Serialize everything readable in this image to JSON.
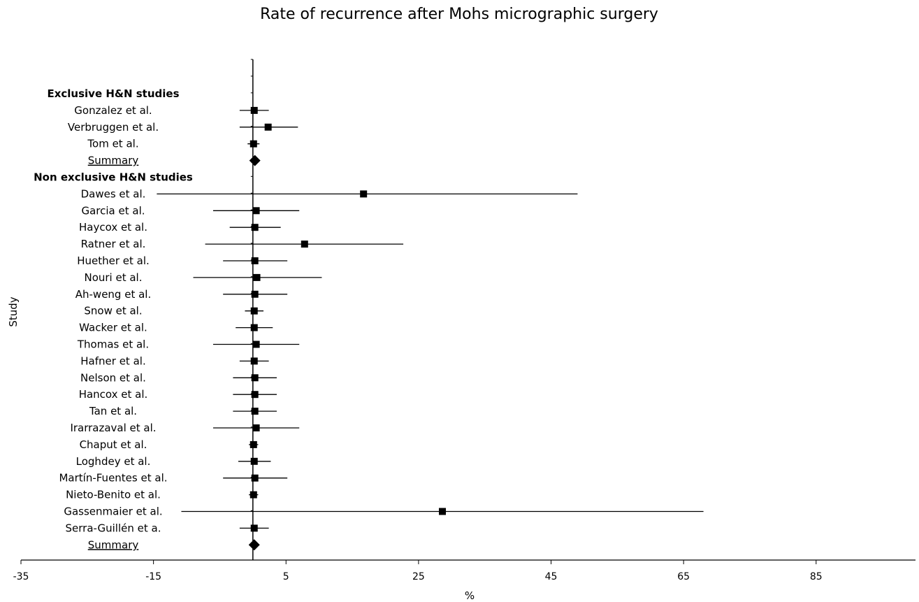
{
  "chart_data": {
    "type": "forest",
    "title": "Rate of recurrence after Mohs micrographic surgery",
    "xlabel": "%",
    "ylabel": "Study",
    "xlim": [
      -35,
      100
    ],
    "xticks": [
      -35,
      -15,
      5,
      25,
      45,
      65,
      85
    ],
    "reference_line": 0,
    "grid": false,
    "rows": [
      {
        "kind": "header",
        "label": "Exclusive  H&N studies"
      },
      {
        "kind": "study",
        "label": "Gonzalez et al.",
        "est": 0.2,
        "lo": -2.0,
        "hi": 2.4
      },
      {
        "kind": "study",
        "label": "Verbruggen  et al.",
        "est": 2.3,
        "lo": -2.0,
        "hi": 6.8
      },
      {
        "kind": "study",
        "label": "Tom et al.",
        "est": 0.1,
        "lo": -0.8,
        "hi": 1.0
      },
      {
        "kind": "summary",
        "label": "Summary",
        "est": 0.3
      },
      {
        "kind": "header",
        "label": "Non exclusive  H&N studies"
      },
      {
        "kind": "study",
        "label": "Dawes et al.",
        "est": 16.7,
        "lo": -14.5,
        "hi": 49.0
      },
      {
        "kind": "study",
        "label": "Garcia et al.",
        "est": 0.5,
        "lo": -6.0,
        "hi": 7.0
      },
      {
        "kind": "study",
        "label": "Haycox et al.",
        "est": 0.3,
        "lo": -3.5,
        "hi": 4.2
      },
      {
        "kind": "study",
        "label": "Ratner et al.",
        "est": 7.8,
        "lo": -7.2,
        "hi": 22.7
      },
      {
        "kind": "study",
        "label": "Huether  et al.",
        "est": 0.3,
        "lo": -4.5,
        "hi": 5.2
      },
      {
        "kind": "study",
        "label": "Nouri et al.",
        "est": 0.6,
        "lo": -9.0,
        "hi": 10.4
      },
      {
        "kind": "study",
        "label": "Ah-weng  et al.",
        "est": 0.3,
        "lo": -4.5,
        "hi": 5.2
      },
      {
        "kind": "study",
        "label": "Snow  et al.",
        "est": 0.2,
        "lo": -1.2,
        "hi": 1.6
      },
      {
        "kind": "study",
        "label": "Wacker et al.",
        "est": 0.2,
        "lo": -2.6,
        "hi": 3.0
      },
      {
        "kind": "study",
        "label": "Thomas  et al.",
        "est": 0.5,
        "lo": -6.0,
        "hi": 7.0
      },
      {
        "kind": "study",
        "label": "Hafner  et al.",
        "est": 0.2,
        "lo": -2.0,
        "hi": 2.4
      },
      {
        "kind": "study",
        "label": "Nelson et al.",
        "est": 0.3,
        "lo": -3.0,
        "hi": 3.6
      },
      {
        "kind": "study",
        "label": "Hancox et al.",
        "est": 0.3,
        "lo": -3.0,
        "hi": 3.6
      },
      {
        "kind": "study",
        "label": "Tan  et al.",
        "est": 0.3,
        "lo": -3.0,
        "hi": 3.6
      },
      {
        "kind": "study",
        "label": "Irarrazaval et al.",
        "est": 0.5,
        "lo": -6.0,
        "hi": 7.0
      },
      {
        "kind": "study",
        "label": "Chaput  et al.",
        "est": 0.1,
        "lo": -0.6,
        "hi": 0.8
      },
      {
        "kind": "study",
        "label": "Loghdey  et al.",
        "est": 0.2,
        "lo": -2.2,
        "hi": 2.7
      },
      {
        "kind": "study",
        "label": "Martín-Fuentes et al.",
        "est": 0.3,
        "lo": -4.5,
        "hi": 5.2
      },
      {
        "kind": "study",
        "label": "Nieto-Benito et al.",
        "est": 0.1,
        "lo": -0.6,
        "hi": 0.8
      },
      {
        "kind": "study",
        "label": "Gassenmaier et al.",
        "est": 28.6,
        "lo": -10.8,
        "hi": 68.0
      },
      {
        "kind": "study",
        "label": "Serra-Guillén et a.",
        "est": 0.2,
        "lo": -2.0,
        "hi": 2.4
      },
      {
        "kind": "summary",
        "label": "Summary",
        "est": 0.2
      }
    ]
  }
}
